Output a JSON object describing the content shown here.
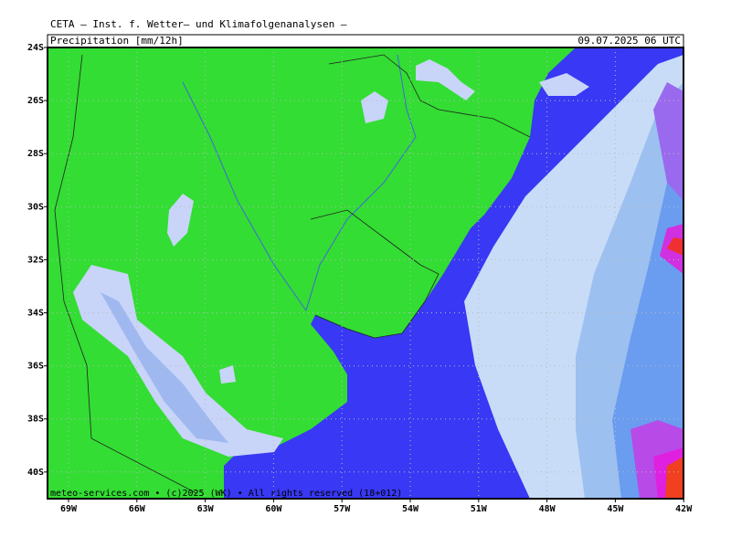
{
  "header": {
    "title": "CETA — Inst. f. Wetter— und Klimafolgenanalysen —",
    "product": "Precipitation [mm/12h]",
    "valid": "09.07.2025 06 UTC"
  },
  "axes": {
    "y_labels": [
      "24S",
      "26S",
      "28S",
      "30S",
      "32S",
      "34S",
      "36S",
      "38S",
      "40S"
    ],
    "x_labels": [
      "69W",
      "66W",
      "63W",
      "60W",
      "57W",
      "54W",
      "51W",
      "48W",
      "45W",
      "42W"
    ]
  },
  "footer": "meteo-services.com • (c)2025 (WK) • All rights reserved (18+012)"
}
